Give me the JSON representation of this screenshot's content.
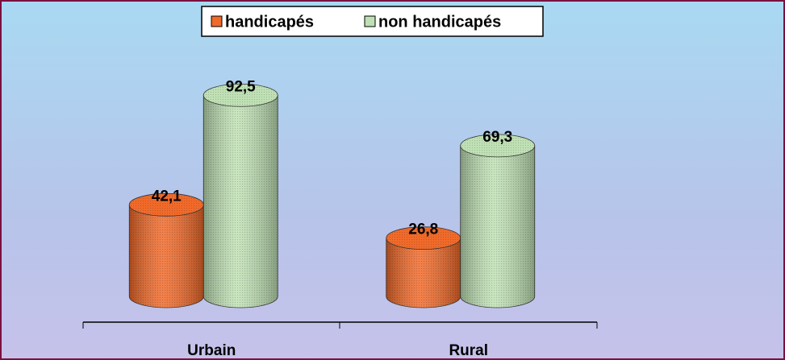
{
  "chart_data": {
    "type": "bar",
    "categories": [
      "Urbain",
      "Rural"
    ],
    "series": [
      {
        "name": "handicapés",
        "color": "#f06a2a",
        "values": [
          42.1,
          26.8
        ],
        "value_labels": [
          "42,1",
          "26,8"
        ]
      },
      {
        "name": "non handicapés",
        "color": "#bfe0b4",
        "values": [
          92.5,
          69.3
        ],
        "value_labels": [
          "92,5",
          "69,3"
        ]
      }
    ],
    "ylim": [
      0,
      100
    ],
    "legend": "top"
  }
}
